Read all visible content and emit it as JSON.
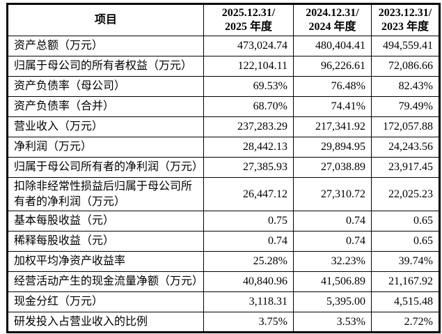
{
  "table": {
    "header": {
      "item_label": "项目",
      "periods": [
        {
          "line1": "2025.12.31/",
          "line2": "2025 年度"
        },
        {
          "line1": "2024.12.31/",
          "line2": "2024 年度"
        },
        {
          "line1": "2023.12.31/",
          "line2": "2023 年度"
        }
      ]
    },
    "rows": [
      {
        "label": "资产总额（万元）",
        "values": [
          "473,024.74",
          "480,404.41",
          "494,559.41"
        ]
      },
      {
        "label": "归属于母公司的所有者权益（万元）",
        "values": [
          "122,104.11",
          "96,226.61",
          "72,086.66"
        ]
      },
      {
        "label": "资产负债率（母公司）",
        "values": [
          "69.53%",
          "76.48%",
          "82.43%"
        ]
      },
      {
        "label": "资产负债率（合并）",
        "values": [
          "68.70%",
          "74.41%",
          "79.49%"
        ]
      },
      {
        "label": "营业收入（万元）",
        "values": [
          "237,283.29",
          "217,341.92",
          "172,057.88"
        ]
      },
      {
        "label": "净利润（万元）",
        "values": [
          "28,442.13",
          "29,894.95",
          "24,243.56"
        ]
      },
      {
        "label": "归属于母公司所有者的净利润（万元）",
        "values": [
          "27,385.93",
          "27,038.89",
          "23,917.45"
        ]
      },
      {
        "label": "扣除非经常性损益后归属于母公司所有者的净利润（万元）",
        "values": [
          "26,447.12",
          "27,310.72",
          "22,025.23"
        ]
      },
      {
        "label": "基本每股收益（元）",
        "values": [
          "0.75",
          "0.74",
          "0.65"
        ]
      },
      {
        "label": "稀释每股收益（元）",
        "values": [
          "0.74",
          "0.74",
          "0.65"
        ]
      },
      {
        "label": "加权平均净资产收益率",
        "values": [
          "25.28%",
          "32.23%",
          "39.74%"
        ]
      },
      {
        "label": "经营活动产生的现金流量净额（万元）",
        "values": [
          "40,840.96",
          "41,506.89",
          "21,167.92"
        ]
      },
      {
        "label": "现金分红（万元）",
        "values": [
          "3,118.31",
          "5,395.00",
          "4,515.48"
        ]
      },
      {
        "label": "研发投入占营业收入的比例",
        "values": [
          "3.75%",
          "3.53%",
          "2.72%"
        ]
      }
    ]
  }
}
